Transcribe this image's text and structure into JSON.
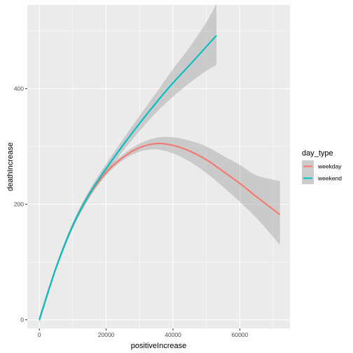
{
  "chart_data": {
    "type": "line",
    "title": "",
    "xlabel": "positiveIncrease",
    "ylabel": "deathIncrease",
    "xlim": [
      -3600,
      75000
    ],
    "ylim": [
      -15,
      545
    ],
    "x_ticks": [
      0,
      20000,
      40000,
      60000
    ],
    "x_tick_labels": [
      "0",
      "20000",
      "40000",
      "60000"
    ],
    "y_ticks": [
      0,
      200,
      400
    ],
    "y_tick_labels": [
      "0",
      "200",
      "400"
    ],
    "grid": true,
    "legend": {
      "title": "day_type",
      "position": "right"
    },
    "colors": {
      "weekday": "#F8766D",
      "weekend": "#00BFC4",
      "ribbon": "#999999",
      "panel": "#EBEBEB",
      "grid": "#FFFFFF"
    },
    "series": [
      {
        "name": "weekday",
        "x": [
          0,
          5000,
          10000,
          15000,
          20000,
          25000,
          30000,
          35000,
          40000,
          45000,
          50000,
          55000,
          60000,
          65000,
          72000
        ],
        "y": [
          0,
          90,
          163,
          217,
          255,
          281,
          298,
          305,
          302,
          292,
          277,
          257,
          236,
          213,
          182
        ],
        "ci_lower": [
          -5,
          86,
          158,
          212,
          250,
          276,
          291,
          295,
          288,
          274,
          254,
          230,
          204,
          176,
          130
        ],
        "ci_upper": [
          5,
          94,
          168,
          222,
          260,
          286,
          305,
          315,
          316,
          310,
          300,
          284,
          268,
          250,
          240
        ]
      },
      {
        "name": "weekend",
        "x": [
          0,
          5000,
          10000,
          15000,
          20000,
          25000,
          30000,
          35000,
          40000,
          45000,
          50000,
          53000
        ],
        "y": [
          0,
          90,
          163,
          218,
          262,
          302,
          340,
          376,
          410,
          441,
          473,
          492
        ],
        "ci_lower": [
          -6,
          85,
          158,
          211,
          254,
          292,
          327,
          359,
          386,
          410,
          431,
          441
        ],
        "ci_upper": [
          6,
          95,
          168,
          225,
          270,
          312,
          353,
          393,
          434,
          472,
          515,
          547
        ]
      }
    ]
  }
}
